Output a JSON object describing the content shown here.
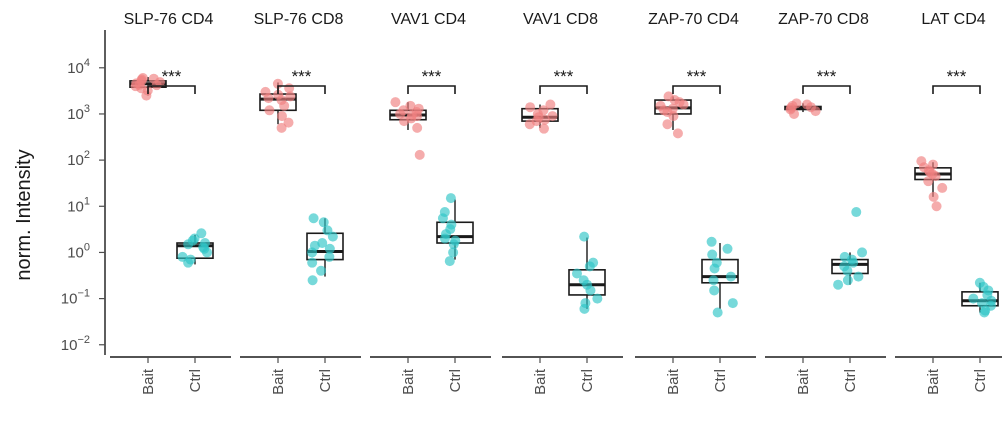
{
  "chart_data": {
    "type": "box",
    "ylabel": "norm. Intensity",
    "yscale": "log10",
    "ylim": [
      0.006,
      40000
    ],
    "y_ticks": [
      {
        "value": 0.01,
        "base": "10",
        "exp": "−2"
      },
      {
        "value": 0.1,
        "base": "10",
        "exp": "−1"
      },
      {
        "value": 1,
        "base": "10",
        "exp": "0"
      },
      {
        "value": 10,
        "base": "10",
        "exp": "1"
      },
      {
        "value": 100,
        "base": "10",
        "exp": "2"
      },
      {
        "value": 1000,
        "base": "10",
        "exp": "3"
      },
      {
        "value": 10000,
        "base": "10",
        "exp": "4"
      }
    ],
    "categories": [
      "Bait",
      "Ctrl"
    ],
    "colors": {
      "Bait": "#F08080",
      "Ctrl": "#2EC4C6"
    },
    "significance_label": "***",
    "grid": false,
    "legend": "none",
    "panels": [
      {
        "title": "SLP-76 CD4",
        "Bait": {
          "q1": 3800,
          "median": 4500,
          "q3": 5200,
          "whisker_low": 2500,
          "whisker_high": 6300,
          "points": [
            2500,
            3200,
            3600,
            4000,
            4300,
            4600,
            4900,
            5200,
            5600,
            6000,
            5800,
            4200
          ]
        },
        "Ctrl": {
          "q1": 0.75,
          "median": 1.4,
          "q3": 1.6,
          "whisker_low": 0.55,
          "whisker_high": 2.4,
          "points": [
            0.6,
            0.7,
            0.8,
            1.0,
            1.3,
            1.5,
            1.6,
            1.8,
            2.0,
            2.6,
            1.2
          ]
        }
      },
      {
        "title": "SLP-76 CD8",
        "Bait": {
          "q1": 1200,
          "median": 2100,
          "q3": 2700,
          "whisker_low": 600,
          "whisker_high": 4800,
          "points": [
            500,
            650,
            900,
            1200,
            1500,
            2000,
            2200,
            2600,
            3000,
            3600,
            4500,
            2400
          ]
        },
        "Ctrl": {
          "q1": 0.7,
          "median": 1.05,
          "q3": 2.6,
          "whisker_low": 0.3,
          "whisker_high": 5.5,
          "points": [
            0.25,
            0.4,
            0.6,
            0.8,
            1.0,
            1.2,
            1.6,
            2.2,
            3.0,
            4.5,
            5.5,
            1.4
          ]
        }
      },
      {
        "title": "VAV1 CD4",
        "Bait": {
          "q1": 750,
          "median": 950,
          "q3": 1200,
          "whisker_low": 450,
          "whisker_high": 1800,
          "points": [
            130,
            500,
            700,
            800,
            900,
            1000,
            1100,
            1300,
            1500,
            1800,
            1200,
            950
          ]
        },
        "Ctrl": {
          "q1": 1.6,
          "median": 2.2,
          "q3": 4.5,
          "whisker_low": 0.7,
          "whisker_high": 14,
          "points": [
            0.65,
            1.0,
            1.5,
            2.0,
            2.5,
            3.2,
            4.0,
            5.5,
            7.5,
            15,
            1.8
          ]
        }
      },
      {
        "title": "VAV1 CD8",
        "Bait": {
          "q1": 700,
          "median": 850,
          "q3": 1300,
          "whisker_low": 500,
          "whisker_high": 1600,
          "points": [
            480,
            600,
            750,
            850,
            1000,
            1200,
            1400,
            1600,
            900,
            700
          ]
        },
        "Ctrl": {
          "q1": 0.12,
          "median": 0.2,
          "q3": 0.42,
          "whisker_low": 0.06,
          "whisker_high": 2.1,
          "points": [
            0.06,
            0.08,
            0.1,
            0.15,
            0.2,
            0.25,
            0.35,
            0.5,
            0.6,
            2.2
          ]
        }
      },
      {
        "title": "ZAP-70 CD4",
        "Bait": {
          "q1": 1000,
          "median": 1350,
          "q3": 2000,
          "whisker_low": 450,
          "whisker_high": 2400,
          "points": [
            380,
            600,
            900,
            1100,
            1300,
            1500,
            1800,
            2000,
            2400,
            1600,
            1200
          ]
        },
        "Ctrl": {
          "q1": 0.22,
          "median": 0.3,
          "q3": 0.7,
          "whisker_low": 0.06,
          "whisker_high": 1.6,
          "points": [
            0.05,
            0.08,
            0.15,
            0.25,
            0.3,
            0.45,
            0.6,
            0.9,
            1.2,
            1.7
          ]
        }
      },
      {
        "title": "ZAP-70 CD8",
        "Bait": {
          "q1": 1250,
          "median": 1350,
          "q3": 1450,
          "whisker_low": 1100,
          "whisker_high": 1700,
          "points": [
            1000,
            1150,
            1250,
            1350,
            1400,
            1500,
            1600,
            1700
          ]
        },
        "Ctrl": {
          "q1": 0.35,
          "median": 0.55,
          "q3": 0.7,
          "whisker_low": 0.2,
          "whisker_high": 1.0,
          "points": [
            0.2,
            0.25,
            0.3,
            0.4,
            0.5,
            0.6,
            0.7,
            0.8,
            1.0,
            7.5
          ]
        }
      },
      {
        "title": "LAT CD4",
        "Bait": {
          "q1": 38,
          "median": 50,
          "q3": 68,
          "whisker_low": 16,
          "whisker_high": 90,
          "points": [
            10,
            16,
            25,
            35,
            45,
            55,
            60,
            70,
            80,
            95,
            50
          ]
        },
        "Ctrl": {
          "q1": 0.07,
          "median": 0.09,
          "q3": 0.14,
          "whisker_low": 0.05,
          "whisker_high": 0.22,
          "points": [
            0.05,
            0.055,
            0.07,
            0.08,
            0.09,
            0.1,
            0.12,
            0.15,
            0.18,
            0.22
          ]
        }
      }
    ]
  }
}
